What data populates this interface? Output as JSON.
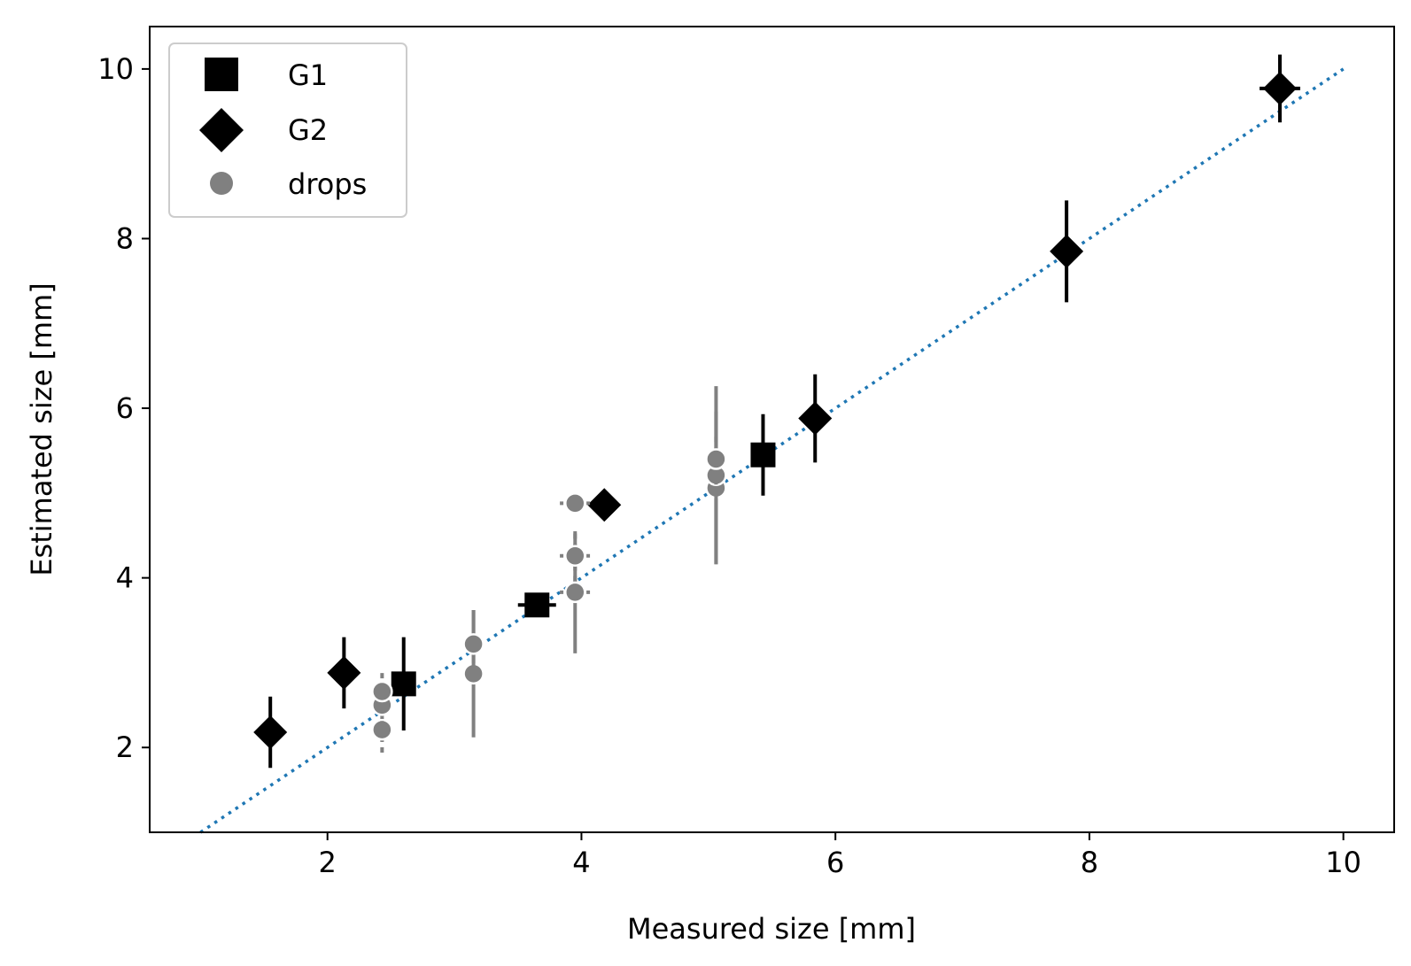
{
  "chart_data": {
    "type": "scatter",
    "xlabel": "Measured size [mm]",
    "ylabel": "Estimated size [mm]",
    "xlim": [
      0.6,
      10.4
    ],
    "ylim": [
      1.0,
      10.5
    ],
    "xticks": [
      2,
      4,
      6,
      8,
      10
    ],
    "yticks": [
      2,
      4,
      6,
      8,
      10
    ],
    "grid": false,
    "legend_position": "top-left",
    "reference_line": {
      "x": [
        1.0,
        10.0
      ],
      "y": [
        1.0,
        10.0
      ],
      "style": "dotted",
      "color": "#1f77b4"
    },
    "series": [
      {
        "name": "G1",
        "marker": "square",
        "color": "#000000",
        "points": [
          {
            "x": 2.6,
            "y": 2.75,
            "yerr": 0.55,
            "xerr": 0.08
          },
          {
            "x": 3.65,
            "y": 3.68,
            "yerr": 0.05,
            "xerr": 0.15
          },
          {
            "x": 5.43,
            "y": 5.45,
            "yerr": 0.48,
            "xerr": 0.06
          }
        ]
      },
      {
        "name": "G2",
        "marker": "diamond",
        "color": "#000000",
        "points": [
          {
            "x": 1.55,
            "y": 2.18,
            "yerr": 0.42,
            "xerr": 0.0
          },
          {
            "x": 2.13,
            "y": 2.88,
            "yerr": 0.42,
            "xerr": 0.0
          },
          {
            "x": 4.18,
            "y": 4.86,
            "yerr": 0.12,
            "xerr": 0.05
          },
          {
            "x": 5.84,
            "y": 5.88,
            "yerr": 0.52,
            "xerr": 0.0
          },
          {
            "x": 7.82,
            "y": 7.85,
            "yerr": 0.6,
            "xerr": 0.0
          },
          {
            "x": 9.5,
            "y": 9.77,
            "yerr": 0.4,
            "xerr": 0.16
          }
        ]
      },
      {
        "name": "drops",
        "marker": "circle",
        "color": "#808080",
        "points": [
          {
            "x": 2.43,
            "y": 2.21,
            "yerr": 0.27
          },
          {
            "x": 2.43,
            "y": 2.5,
            "yerr": 0.25
          },
          {
            "x": 2.43,
            "y": 2.66,
            "yerr": 0.22
          },
          {
            "x": 3.15,
            "y": 2.87,
            "yerr": 0.75
          },
          {
            "x": 3.15,
            "y": 3.22,
            "yerr": 0.4
          },
          {
            "x": 3.95,
            "y": 3.83,
            "yerr": 0.72,
            "xerr": 0.12
          },
          {
            "x": 3.95,
            "y": 4.26,
            "yerr": 0.3,
            "xerr": 0.12
          },
          {
            "x": 3.95,
            "y": 4.88,
            "yerr": 0.1,
            "xerr": 0.12
          },
          {
            "x": 5.06,
            "y": 5.06,
            "yerr": 0.9
          },
          {
            "x": 5.06,
            "y": 5.21,
            "yerr": 1.05
          },
          {
            "x": 5.06,
            "y": 5.4,
            "yerr": 0.3
          }
        ]
      }
    ]
  }
}
